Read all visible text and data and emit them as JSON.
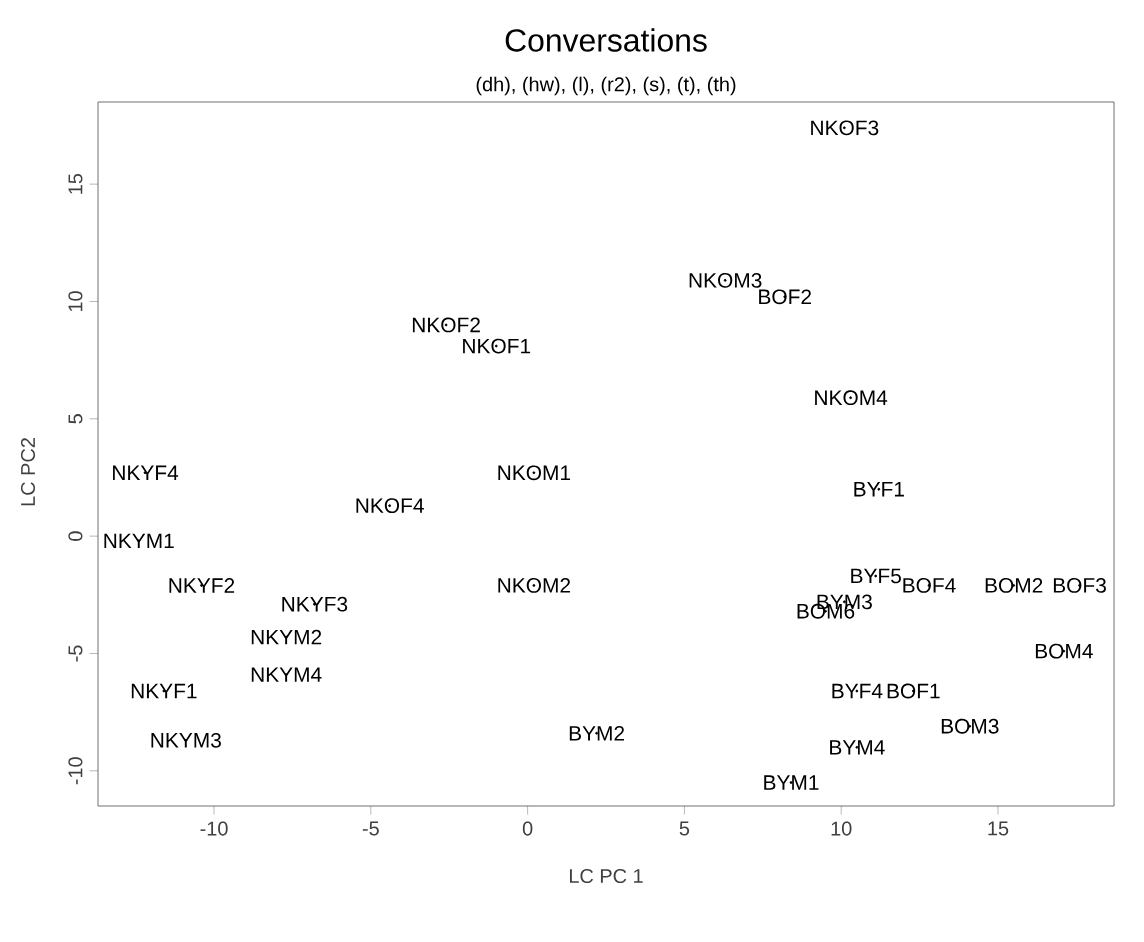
{
  "chart_data": {
    "type": "scatter",
    "title": "Conversations",
    "subtitle": "(dh), (hw), (l), (r2), (s), (t), (th)",
    "xlabel": "LC PC 1",
    "ylabel": "LC PC2",
    "xlim": [
      -13.7,
      18.7
    ],
    "ylim": [
      -11.5,
      18.5
    ],
    "xticks": [
      -10,
      -5,
      0,
      5,
      10,
      15
    ],
    "yticks": [
      -10,
      -5,
      0,
      5,
      10,
      15
    ],
    "marker": "circle",
    "grid": false,
    "series": [
      {
        "color": "#000000",
        "x": [
          10.1,
          6.3,
          8.2,
          10.3,
          -2.6,
          -1.0,
          -12.2,
          0.2,
          -4.4,
          -12.4,
          -10.4,
          0.2,
          -6.8,
          -7.7,
          -7.7,
          -11.6,
          -10.9,
          2.2,
          11.2,
          11.1,
          12.8,
          15.5,
          17.6,
          10.1,
          9.5,
          10.5,
          12.3,
          17.1,
          14.1,
          10.5,
          8.4
        ],
        "values": [
          17.4,
          10.9,
          10.2,
          5.9,
          9.0,
          8.1,
          2.7,
          2.7,
          1.3,
          -0.2,
          -2.1,
          -2.1,
          -2.9,
          -4.3,
          -5.9,
          -6.6,
          -8.7,
          -8.4,
          2.0,
          -1.7,
          -2.1,
          -2.1,
          -2.1,
          -2.8,
          -3.2,
          -6.6,
          -6.6,
          -4.9,
          -8.1,
          -9.0,
          -10.5
        ],
        "value_labels": [
          "NKOF3",
          "NKOM3",
          "BOF2",
          "NKOM4",
          "NKOF2",
          "NKOF1",
          "NKYF4",
          "NKOM1",
          "NKOF4",
          "NKYM1",
          "NKYF2",
          "NKOM2",
          "NKYF3",
          "NKYM2",
          "NKYM4",
          "NKYF1",
          "NKYM3",
          "BYM2",
          "BYF1",
          "BYF5",
          "BOF4",
          "BOM2",
          "BOF3",
          "BYM3",
          "BOM6",
          "BYF4",
          "BOF1",
          "BOM4",
          "BOM3",
          "BYM4",
          "BYM1"
        ]
      }
    ]
  }
}
